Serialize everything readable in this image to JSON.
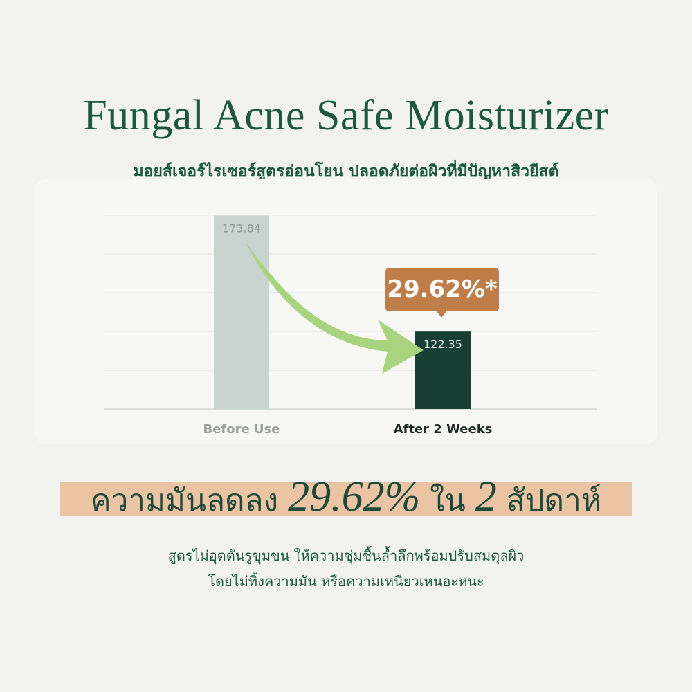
{
  "title": "Fungal Acne Safe Moisturizer",
  "subtitle": "มอยส์เจอร์ไรเซอร์สูตรอ่อนโยน ปลอดภัยต่อผิวที่มีปัญหาสิวยีสต์",
  "chart_data": {
    "type": "bar",
    "categories": [
      "Before Use",
      "After 2 Weeks"
    ],
    "values": [
      173.84,
      122.35
    ],
    "data_labels": [
      "173.84",
      "122.35"
    ],
    "bar_colors": [
      "#c9d3d0",
      "#173f33"
    ],
    "ylim": [
      88,
      174
    ],
    "grid": true,
    "annotation": "29.62%*",
    "annotation_color": "#bf7e48",
    "arrow_color": "#a8d47e"
  },
  "headline": {
    "pre": "ความมันลดลง ",
    "num1": "29.62%",
    "mid": " ใน ",
    "num2": "2",
    "post": " สัปดาห์"
  },
  "body": [
    "สูตรไม่อุดตันรูขุมขน ให้ความชุ่มชื้นล้ำลึกพร้อมปรับสมดุลผิว",
    "โดยไม่ทิ้งความมัน หรือความเหนียวเหนอะหนะ"
  ],
  "colors": {
    "background": "#f2f2ee",
    "brand_green": "#1b5a40",
    "highlight": "#ebc4a3"
  }
}
